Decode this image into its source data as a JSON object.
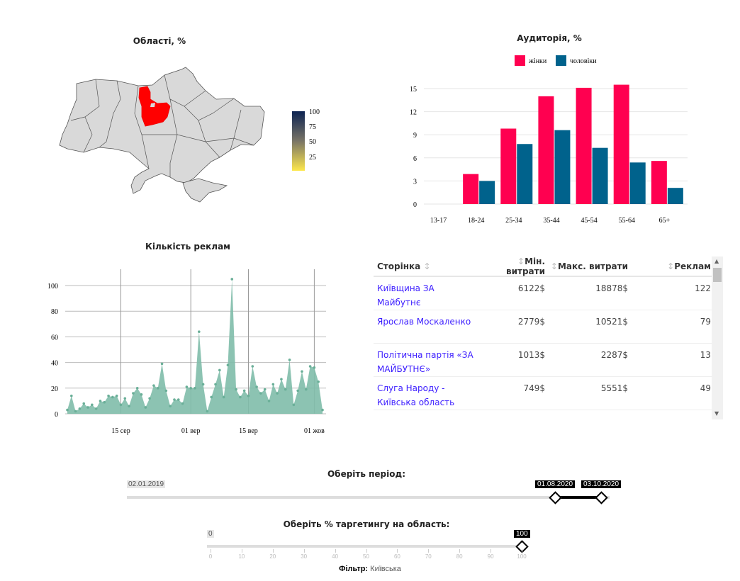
{
  "map": {
    "title": "Області, %",
    "highlighted_region": "Київська",
    "highlight_color": "#ff0000",
    "legend_ticks": [
      "100",
      "75",
      "50",
      "25"
    ]
  },
  "chart_data": [
    {
      "type": "bar",
      "title": "Аудиторія, %",
      "categories": [
        "13-17",
        "18-24",
        "25-34",
        "35-44",
        "45-54",
        "55-64",
        "65+"
      ],
      "series": [
        {
          "name": "жінки",
          "color": "#ff0050",
          "values": [
            0,
            3.9,
            9.8,
            14.0,
            15.1,
            15.5,
            5.6
          ]
        },
        {
          "name": "чоловіки",
          "color": "#00628c",
          "values": [
            0,
            3.0,
            7.8,
            9.6,
            7.3,
            5.4,
            2.1
          ]
        }
      ],
      "ylim": [
        0,
        15
      ],
      "yticks": [
        "0",
        "3",
        "6",
        "9",
        "12",
        "15"
      ],
      "legend": "top"
    },
    {
      "type": "area",
      "title": "Кількість реклам",
      "values": [
        3,
        14,
        2,
        4,
        8,
        5,
        7,
        4,
        10,
        9,
        14,
        13,
        14,
        7,
        12,
        6,
        16,
        20,
        15,
        5,
        12,
        22,
        20,
        39,
        18,
        6,
        11,
        11,
        8,
        21,
        20,
        20,
        64,
        23,
        2,
        13,
        23,
        34,
        13,
        38,
        105,
        19,
        13,
        18,
        14,
        37,
        21,
        16,
        19,
        10,
        23,
        16,
        27,
        19,
        42,
        7,
        18,
        33,
        19,
        37,
        36,
        25,
        3
      ],
      "color": "#7fbcaa",
      "ylim": [
        0,
        110
      ],
      "yticks": [
        "0",
        "20",
        "40",
        "60",
        "80",
        "100"
      ],
      "xticks": [
        {
          "label": "15 сер",
          "index": 13
        },
        {
          "label": "01 вер",
          "index": 30
        },
        {
          "label": "15 вер",
          "index": 44
        },
        {
          "label": "01 жов",
          "index": 60
        }
      ]
    }
  ],
  "table": {
    "headers": [
      "Сторінка",
      "Мін. витрати",
      "Макс. витрати",
      "Реклам"
    ],
    "rows": [
      [
        "Київщина ЗА Майбутнє",
        "6122$",
        "18878$",
        "122"
      ],
      [
        "Ярослав Москаленко",
        "2779$",
        "10521$",
        "79"
      ],
      [
        "Політична партія «ЗА МАЙБУТНЄ»",
        "1013$",
        "2287$",
        "13"
      ],
      [
        "Слуга Народу - Київська область",
        "749$",
        "5551$",
        "49"
      ]
    ]
  },
  "period": {
    "label": "Оберіть період:",
    "min": "02.01.2019",
    "start": "01.08.2020",
    "end": "03.10.2020",
    "start_frac": 0.912,
    "end_frac": 0.972
  },
  "targeting": {
    "label": "Оберіть % таргетингу на область:",
    "min": "0",
    "value": "100",
    "ticks": [
      "0",
      "10",
      "20",
      "30",
      "40",
      "50",
      "60",
      "70",
      "80",
      "90",
      "100"
    ]
  },
  "filter": {
    "label": "Фільтр:",
    "value": "Київська"
  }
}
